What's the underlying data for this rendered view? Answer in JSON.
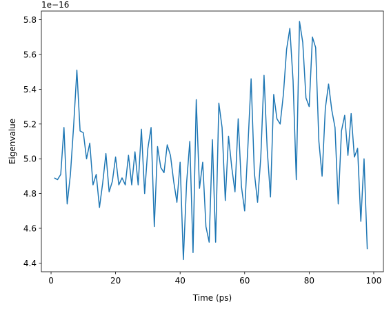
{
  "chart_data": {
    "type": "line",
    "xlabel": "Time (ps)",
    "ylabel": "Eigenvalue",
    "offset_text": "1e−16",
    "xlim": [
      -3,
      103
    ],
    "ylim": [
      4.35,
      5.85
    ],
    "x_ticks": [
      0,
      20,
      40,
      60,
      80,
      100
    ],
    "x_tick_labels": [
      "0",
      "20",
      "40",
      "60",
      "80",
      "100"
    ],
    "y_ticks": [
      4.4,
      4.6,
      4.8,
      5.0,
      5.2,
      5.4,
      5.6,
      5.8
    ],
    "y_tick_labels": [
      "4.4",
      "4.6",
      "4.8",
      "5.0",
      "5.2",
      "5.4",
      "5.6",
      "5.8"
    ],
    "grid": false,
    "legend": false,
    "line_color": "#1f77b4",
    "series": [
      {
        "x": [
          1,
          2,
          3,
          4,
          5,
          6,
          7,
          8,
          9,
          10,
          11,
          12,
          13,
          14,
          15,
          16,
          17,
          18,
          19,
          20,
          21,
          22,
          23,
          24,
          25,
          26,
          27,
          28,
          29,
          30,
          31,
          32,
          33,
          34,
          35,
          36,
          37,
          38,
          39,
          40,
          41,
          42,
          43,
          44,
          45,
          46,
          47,
          48,
          49,
          50,
          51,
          52,
          53,
          54,
          55,
          56,
          57,
          58,
          59,
          60,
          61,
          62,
          63,
          64,
          65,
          66,
          67,
          68,
          69,
          70,
          71,
          72,
          73,
          74,
          75,
          76,
          77,
          78,
          79,
          80,
          81,
          82,
          83,
          84,
          85,
          86,
          87,
          88,
          89,
          90,
          91,
          92,
          93,
          94,
          95,
          96,
          97,
          98
        ],
        "values": [
          4.89,
          4.88,
          4.91,
          5.18,
          4.74,
          4.91,
          5.19,
          5.51,
          5.16,
          5.15,
          5.0,
          5.09,
          4.85,
          4.91,
          4.72,
          4.86,
          5.03,
          4.81,
          4.87,
          5.01,
          4.85,
          4.89,
          4.85,
          5.02,
          4.85,
          5.04,
          4.85,
          5.17,
          4.8,
          5.06,
          5.18,
          4.61,
          5.07,
          4.95,
          4.92,
          5.08,
          5.02,
          4.87,
          4.75,
          4.98,
          4.42,
          4.86,
          5.1,
          4.46,
          5.34,
          4.83,
          4.98,
          4.61,
          4.52,
          5.11,
          4.52,
          5.32,
          5.18,
          4.76,
          5.13,
          4.95,
          4.81,
          5.23,
          4.84,
          4.7,
          5.07,
          5.46,
          4.92,
          4.75,
          5.01,
          5.48,
          5.05,
          4.78,
          5.37,
          5.23,
          5.2,
          5.37,
          5.63,
          5.75,
          5.45,
          4.88,
          5.79,
          5.67,
          5.35,
          5.3,
          5.7,
          5.64,
          5.1,
          4.9,
          5.29,
          5.43,
          5.28,
          5.18,
          4.74,
          5.16,
          5.25,
          5.02,
          5.26,
          5.01,
          5.06,
          4.64,
          5.0,
          4.48
        ]
      }
    ]
  }
}
